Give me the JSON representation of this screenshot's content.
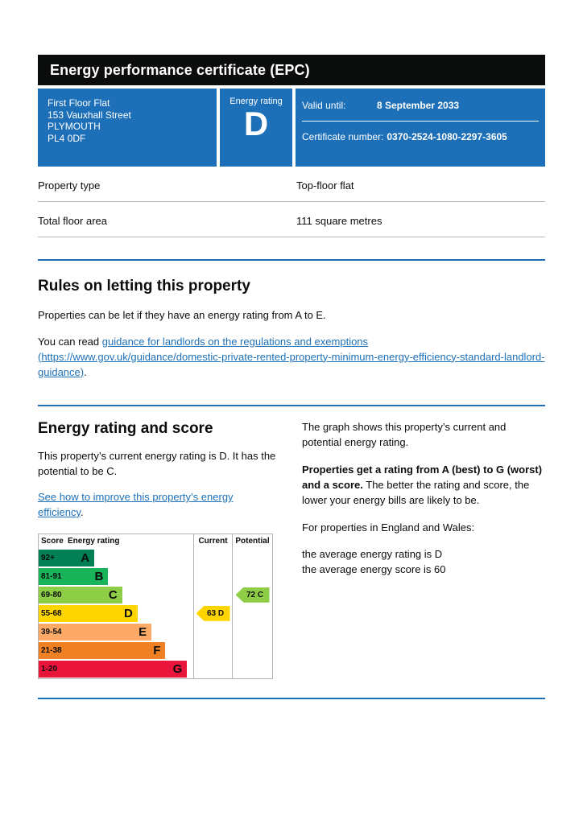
{
  "header": {
    "title": "Energy performance certificate (EPC)"
  },
  "banner": {
    "address_lines": [
      "First Floor Flat",
      "153 Vauxhall Street",
      "PLYMOUTH",
      "PL4 0DF"
    ],
    "rating_label": "Energy rating",
    "rating_value": "D",
    "valid_until_label": "Valid until:",
    "valid_until_value": "8 September 2033",
    "certificate_label": "Certificate number:",
    "certificate_value": "0370-2524-1080-2297-3605"
  },
  "details": {
    "rows": [
      {
        "label": "Property type",
        "value": "Top-floor flat"
      },
      {
        "label": "Total floor area",
        "value": "111 square metres"
      }
    ]
  },
  "letting": {
    "heading": "Rules on letting this property",
    "intro": "Properties can be let if they have an energy rating from A to E.",
    "read_prefix": "You can read ",
    "guidance_link_text": "guidance for landlords on the regulations and exemptions (https://www.gov.uk/guidance/domestic-private-rented-property-minimum-energy-efficiency-standard-landlord-guidance)",
    "read_suffix": "."
  },
  "rating_section": {
    "heading": "Energy rating and score",
    "current_summary": "This property’s current energy rating is D. It has the potential to be C.",
    "improve_link_text": "See how to improve this property’s energy efficiency",
    "improve_suffix": ".",
    "explain_para1": "The graph shows this property’s current and potential energy rating.",
    "explain_para2_bold": "Properties get a rating from A (best) to G (worst) and a score.",
    "explain_para2_rest": " The better the rating and score, the lower your energy bills are likely to be.",
    "explain_para3": "For properties in England and Wales:",
    "average_rating_line": "the average energy rating is D",
    "average_score_line": "the average energy score is 60"
  },
  "chart_data": {
    "type": "bar",
    "title": "Energy rating and score",
    "columns": [
      "Score",
      "Energy rating",
      "Current",
      "Potential"
    ],
    "bands": [
      {
        "score_range": "92+",
        "letter": "A",
        "color": "#008054",
        "width_pct": 36
      },
      {
        "score_range": "81-91",
        "letter": "B",
        "color": "#19b459",
        "width_pct": 45
      },
      {
        "score_range": "69-80",
        "letter": "C",
        "color": "#8dce46",
        "width_pct": 54
      },
      {
        "score_range": "55-68",
        "letter": "D",
        "color": "#ffd500",
        "width_pct": 64
      },
      {
        "score_range": "39-54",
        "letter": "E",
        "color": "#fcaa65",
        "width_pct": 73
      },
      {
        "score_range": "21-38",
        "letter": "F",
        "color": "#ef8023",
        "width_pct": 82
      },
      {
        "score_range": "1-20",
        "letter": "G",
        "color": "#e9153b",
        "width_pct": 96
      }
    ],
    "current": {
      "label": "63 D",
      "score": 63,
      "letter": "D",
      "color": "#ffd500"
    },
    "potential": {
      "label": "72 C",
      "score": 72,
      "letter": "C",
      "color": "#8dce46"
    }
  },
  "colors": {
    "govuk_blue": "#1d70b8",
    "black_bar": "#0b0c0c",
    "border_grey": "#b1b4b6"
  }
}
